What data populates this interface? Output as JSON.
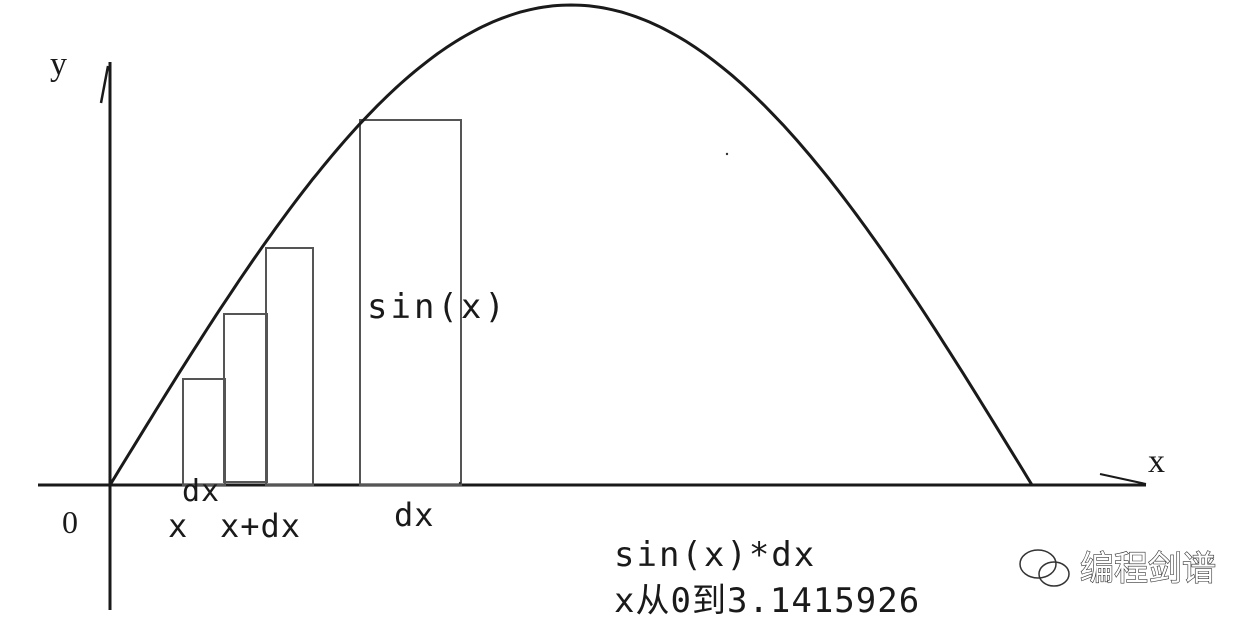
{
  "axes": {
    "y_label": "y",
    "x_label": "x",
    "origin_label": "0"
  },
  "labels": {
    "sin_x": "sin(x)",
    "dx_small": "dx",
    "x_tick": "x",
    "x_plus_dx": "x+dx",
    "dx_large": "dx",
    "formula_line1": "sin(x)*dx",
    "formula_line2": "x从0到3.1415926"
  },
  "watermark": {
    "text": "编程剑谱",
    "icon": "wechat-icon"
  },
  "colors": {
    "stroke": "#1a1a1a",
    "rect_stroke": "#555555",
    "watermark": "#ffffff"
  }
}
